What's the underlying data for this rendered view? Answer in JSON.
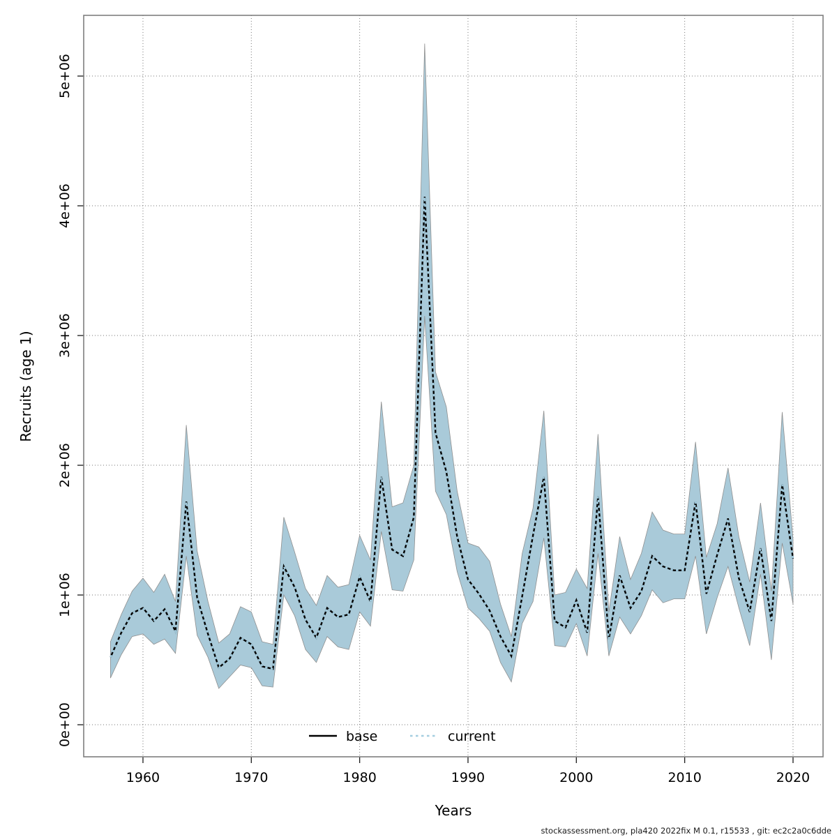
{
  "window": {
    "background": "#ffffff"
  },
  "axes": {
    "x": {
      "label": "Years",
      "tick_labels": [
        "1960",
        "1970",
        "1980",
        "1990",
        "2000",
        "2010",
        "2020"
      ],
      "tick_years": [
        1960,
        1970,
        1980,
        1990,
        2000,
        2010,
        2020
      ]
    },
    "y": {
      "label": "Recruits (age 1)",
      "tick_labels": [
        "0e+00",
        "1e+06",
        "2e+06",
        "3e+06",
        "4e+06",
        "5e+06"
      ],
      "tick_values": [
        0,
        1000000,
        2000000,
        3000000,
        4000000,
        5000000
      ]
    }
  },
  "legend": {
    "items": [
      {
        "label": "base",
        "style": "solid",
        "color": "#000000"
      },
      {
        "label": "current",
        "style": "dotted",
        "color": "#a3cde0"
      }
    ]
  },
  "footer": {
    "text": "stockassessment.org, pla420 2022fix M 0.1, r15533 , git: ec2c2a0c6dde"
  },
  "colors": {
    "band_fill": "#a9cad9",
    "band_edge": "#8f8f8f",
    "grid": "#757575",
    "frame": "#7e7e7e",
    "tick": "#1a1a1a",
    "base_line": "#000000",
    "current_line": "#a3cde0"
  },
  "chart_data": {
    "type": "line",
    "title": "",
    "xlabel": "Years",
    "ylabel": "Recruits (age 1)",
    "grid": true,
    "legend_position": "bottom-center-inside",
    "xlim": [
      1957,
      2020
    ],
    "ylim": [
      0,
      5468000
    ],
    "x": [
      1957,
      1958,
      1959,
      1960,
      1961,
      1962,
      1963,
      1964,
      1965,
      1966,
      1967,
      1968,
      1969,
      1970,
      1971,
      1972,
      1973,
      1974,
      1975,
      1976,
      1977,
      1978,
      1979,
      1980,
      1981,
      1982,
      1983,
      1984,
      1985,
      1986,
      1987,
      1988,
      1989,
      1990,
      1991,
      1992,
      1993,
      1994,
      1995,
      1996,
      1997,
      1998,
      1999,
      2000,
      2001,
      2002,
      2003,
      2004,
      2005,
      2006,
      2007,
      2008,
      2009,
      2010,
      2011,
      2012,
      2013,
      2014,
      2015,
      2016,
      2017,
      2018,
      2019,
      2020
    ],
    "series": [
      {
        "name": "base",
        "values": [
          520000,
          710000,
          860000,
          900000,
          800000,
          890000,
          720000,
          1720000,
          980000,
          700000,
          440000,
          510000,
          670000,
          620000,
          450000,
          430000,
          1220000,
          1060000,
          810000,
          670000,
          900000,
          830000,
          850000,
          1140000,
          950000,
          1910000,
          1350000,
          1300000,
          1600000,
          4070000,
          2250000,
          1950000,
          1450000,
          1120000,
          1010000,
          880000,
          680000,
          530000,
          990000,
          1460000,
          1910000,
          800000,
          750000,
          960000,
          710000,
          1760000,
          660000,
          1150000,
          900000,
          1030000,
          1300000,
          1220000,
          1190000,
          1190000,
          1720000,
          1010000,
          1310000,
          1590000,
          1130000,
          870000,
          1360000,
          800000,
          1850000,
          1280000
        ]
      },
      {
        "name": "current",
        "values": [
          520000,
          710000,
          860000,
          900000,
          800000,
          890000,
          720000,
          1720000,
          980000,
          700000,
          440000,
          510000,
          670000,
          620000,
          450000,
          430000,
          1220000,
          1060000,
          810000,
          670000,
          900000,
          830000,
          850000,
          1140000,
          950000,
          1910000,
          1350000,
          1300000,
          1600000,
          4070000,
          2250000,
          1950000,
          1450000,
          1120000,
          1010000,
          880000,
          680000,
          530000,
          990000,
          1460000,
          1910000,
          800000,
          750000,
          960000,
          710000,
          1760000,
          660000,
          1150000,
          900000,
          1030000,
          1300000,
          1220000,
          1190000,
          1190000,
          1720000,
          1010000,
          1310000,
          1590000,
          1130000,
          870000,
          1360000,
          800000,
          1850000,
          1280000
        ]
      }
    ],
    "band": {
      "name": "current confidence interval",
      "lo": [
        360000,
        540000,
        680000,
        700000,
        620000,
        660000,
        550000,
        1300000,
        690000,
        520000,
        280000,
        370000,
        460000,
        440000,
        300000,
        290000,
        1000000,
        840000,
        580000,
        480000,
        680000,
        600000,
        580000,
        870000,
        760000,
        1490000,
        1040000,
        1030000,
        1270000,
        3150000,
        1800000,
        1620000,
        1180000,
        900000,
        820000,
        720000,
        480000,
        330000,
        780000,
        950000,
        1440000,
        610000,
        600000,
        780000,
        530000,
        1320000,
        530000,
        830000,
        700000,
        840000,
        1040000,
        940000,
        970000,
        970000,
        1300000,
        700000,
        980000,
        1220000,
        900000,
        610000,
        1160000,
        500000,
        1400000,
        930000
      ],
      "hi": [
        640000,
        850000,
        1030000,
        1130000,
        1020000,
        1160000,
        950000,
        2310000,
        1340000,
        950000,
        630000,
        700000,
        910000,
        870000,
        640000,
        620000,
        1600000,
        1330000,
        1050000,
        920000,
        1150000,
        1060000,
        1080000,
        1460000,
        1270000,
        2490000,
        1680000,
        1710000,
        2000000,
        5250000,
        2720000,
        2450000,
        1800000,
        1400000,
        1370000,
        1260000,
        930000,
        680000,
        1320000,
        1670000,
        2420000,
        1000000,
        1020000,
        1200000,
        1050000,
        2240000,
        870000,
        1450000,
        1120000,
        1320000,
        1640000,
        1500000,
        1470000,
        1470000,
        2180000,
        1290000,
        1550000,
        1980000,
        1450000,
        1100000,
        1710000,
        1030000,
        2410000,
        1430000
      ]
    }
  }
}
